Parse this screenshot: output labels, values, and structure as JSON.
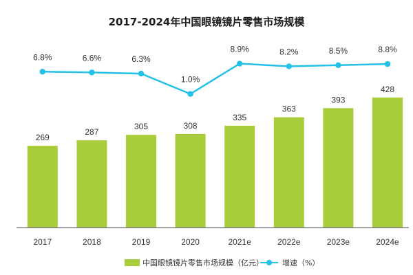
{
  "colors": {
    "bar": "#a9cd3a",
    "line": "#23c0e8",
    "axis": "#444444",
    "text": "#333333"
  },
  "chart_data": {
    "type": "bar",
    "title": "2017-2024年中国眼镜镜片零售市场规模",
    "categories": [
      "2017",
      "2018",
      "2019",
      "2020",
      "2021e",
      "2022e",
      "2023e",
      "2024e"
    ],
    "series": [
      {
        "name": "中国眼镜镜片零售市场规模（亿元）",
        "type": "bar",
        "values": [
          269,
          287,
          305,
          308,
          335,
          363,
          393,
          428
        ]
      },
      {
        "name": "增速（%）",
        "type": "line",
        "values": [
          6.8,
          6.6,
          6.3,
          1.0,
          8.9,
          8.2,
          8.5,
          8.8
        ],
        "labels": [
          "6.8%",
          "6.6%",
          "6.3%",
          "1.0%",
          "8.9%",
          "8.2%",
          "8.5%",
          "8.8%"
        ]
      }
    ],
    "legend": {
      "position": "bottom"
    },
    "grid": false
  }
}
